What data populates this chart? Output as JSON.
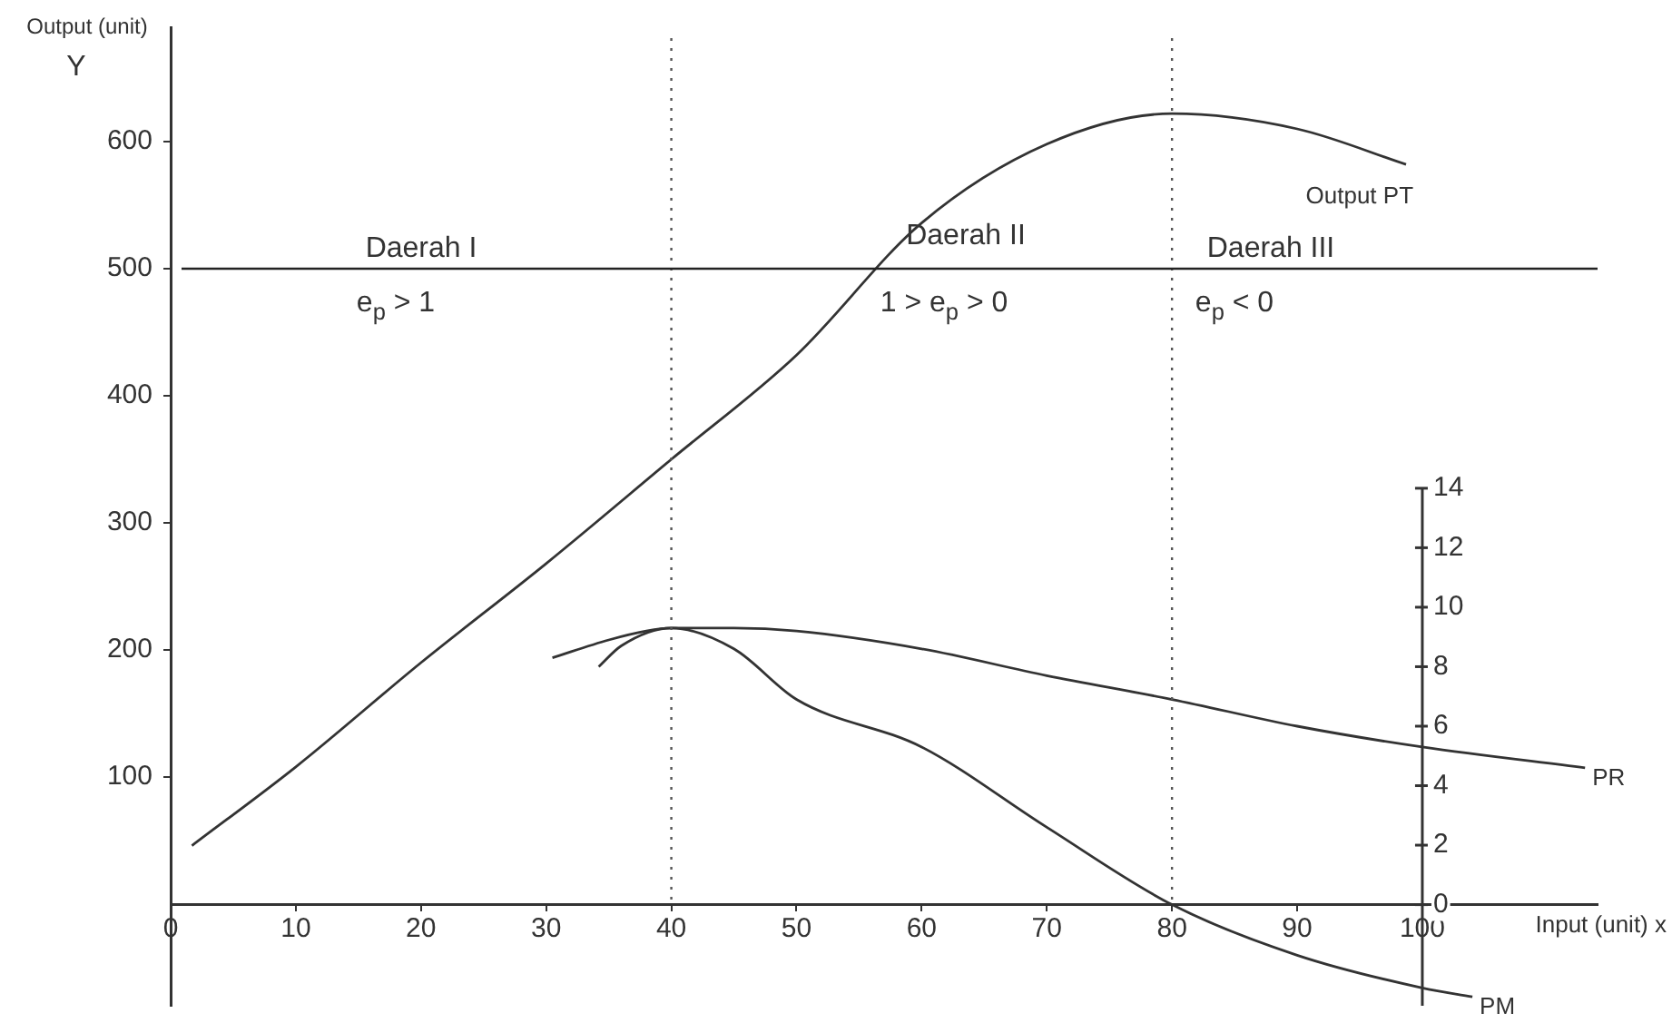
{
  "chart_data": {
    "type": "line",
    "xlabel": "Input (unit) x",
    "ylabel": "Output (unit)\nY",
    "xlim": [
      0,
      114
    ],
    "xticks": [
      0,
      10,
      20,
      30,
      40,
      50,
      60,
      70,
      80,
      90,
      100
    ],
    "ylim": [
      -80,
      690
    ],
    "yticks": [
      100,
      200,
      300,
      400,
      500,
      600
    ],
    "y2lim": [
      -3.4,
      29.5
    ],
    "y2ticks": [
      0,
      2,
      4,
      6,
      8,
      10,
      12,
      14
    ],
    "grid": false,
    "legend": false,
    "marker": "none",
    "line_style": "solid",
    "series": [
      {
        "name": "Output PT",
        "color": "#333333",
        "x": [
          1.7,
          10,
          20,
          30,
          40,
          50,
          60,
          70,
          80,
          90,
          98.7
        ],
        "values": [
          46,
          108,
          190,
          268,
          350,
          432,
          536,
          598,
          622,
          610,
          582
        ]
      },
      {
        "name": "PR",
        "color": "#333333",
        "axis": "y2",
        "x": [
          30.5,
          35,
          38,
          40,
          45,
          50,
          60,
          70,
          80,
          90,
          100,
          113
        ],
        "values": [
          8.3,
          8.9,
          9.2,
          9.3,
          9.3,
          9.2,
          8.6,
          7.7,
          6.9,
          6.0,
          5.3,
          4.6
        ]
      },
      {
        "name": "PM",
        "color": "#333333",
        "axis": "y2",
        "x": [
          34.2,
          36,
          40,
          45,
          50,
          60,
          70,
          80,
          90,
          100,
          104
        ],
        "values": [
          8.0,
          8.7,
          9.3,
          8.6,
          6.9,
          5.3,
          2.6,
          0,
          -1.7,
          -2.8,
          -3.1
        ]
      }
    ],
    "ref_lines": [
      {
        "axis": "x",
        "value": 40,
        "line_style": "dotted",
        "color": "#555555"
      },
      {
        "axis": "x",
        "value": 80,
        "line_style": "dotted",
        "color": "#555555"
      },
      {
        "axis": "y",
        "value": 500,
        "line_style": "solid",
        "color": "#222222"
      }
    ],
    "annotations": [
      "Daerah I",
      "e$_{p}$ > 1",
      "Daerah II",
      "1 > e$_{p}$ > 0",
      "Daerah III",
      "e$_{p}$ < 0"
    ]
  }
}
